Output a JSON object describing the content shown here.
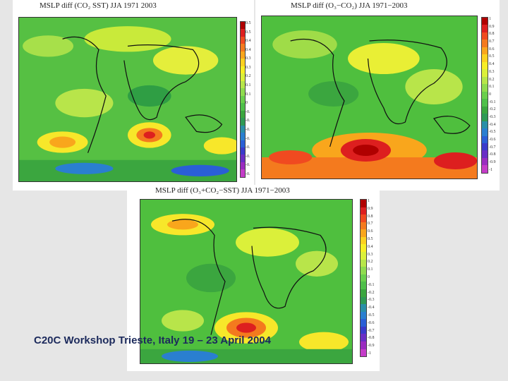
{
  "panels": [
    {
      "title": "MSLP diff (CO₂ SST) JJA 1971 2003",
      "ticks": [
        "0.5",
        "0.5",
        "0.4",
        "0.4",
        "0.3",
        "0.3",
        "0.2",
        "0.1",
        "0.1",
        "0",
        "-0.",
        "-0.",
        "-0.",
        "-0.",
        "-0.",
        "-0.",
        "-0.",
        "-0."
      ]
    },
    {
      "title": "MSLP diff (O₃−CO₂) JJA 1971−2003",
      "ticks": [
        "1",
        "0.9",
        "0.8",
        "0.7",
        "0.6",
        "0.5",
        "0.4",
        "0.3",
        "0.2",
        "0.1",
        "0",
        "-0.1",
        "-0.2",
        "-0.3",
        "-0.4",
        "-0.5",
        "-0.6",
        "-0.7",
        "-0.8",
        "-0.9",
        "-1"
      ]
    },
    {
      "title": "MSLP diff (O₃+CO₂−SST) JJA 1971−2003",
      "ticks": [
        "1",
        "0.9",
        "0.8",
        "0.7",
        "0.6",
        "0.5",
        "0.4",
        "0.3",
        "0.2",
        "0.1",
        "0",
        "-0.1",
        "-0.2",
        "-0.3",
        "-0.4",
        "-0.5",
        "-0.6",
        "-0.7",
        "-0.8",
        "-0.9",
        "-1"
      ]
    }
  ],
  "colorbar": [
    "#b00000",
    "#dd1f1f",
    "#f04a20",
    "#f47a1e",
    "#f9a61c",
    "#fcd11f",
    "#f7ee25",
    "#dbf03a",
    "#b7e64a",
    "#8fdb4f",
    "#6acf4d",
    "#4fc04a",
    "#3ba63f",
    "#2f9a55",
    "#2a8fa8",
    "#2a7fd0",
    "#2a5fd6",
    "#3a3acb",
    "#6a2ec5",
    "#9a2cc0",
    "#c43cc8"
  ],
  "colors": {
    "ocean_green": "#4fbf3e",
    "footer_text": "#1c2a5c"
  },
  "footer": "C20C Workshop Trieste, Italy 19 – 23 April 2004"
}
